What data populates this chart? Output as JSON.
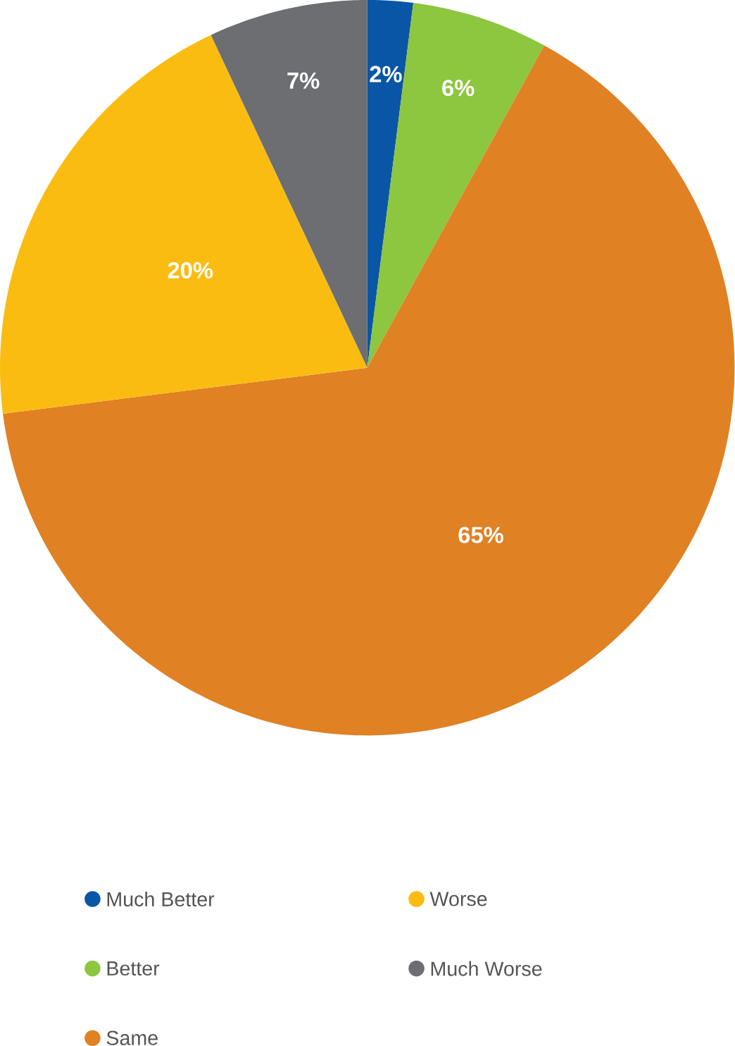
{
  "chart_data": {
    "type": "pie",
    "categories": [
      "Much Better",
      "Better",
      "Same",
      "Worse",
      "Much Worse"
    ],
    "values": [
      2,
      6,
      65,
      20,
      7
    ],
    "colors": [
      "#0a56a6",
      "#8dc63f",
      "#e08123",
      "#fbbc11",
      "#6d6e71"
    ],
    "value_labels": [
      "2%",
      "6%",
      "65%",
      "20%",
      "7%"
    ],
    "legend": "bottom"
  }
}
